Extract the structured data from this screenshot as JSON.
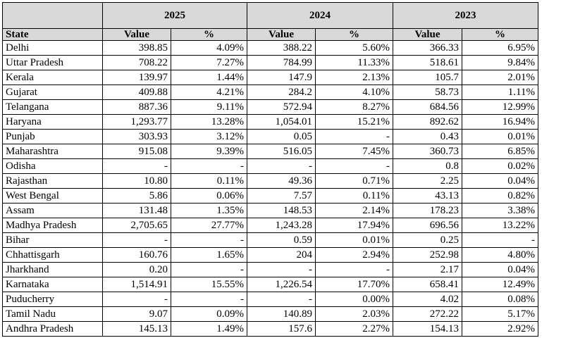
{
  "header": {
    "years": [
      "2025",
      "2024",
      "2023"
    ],
    "state_label": "State",
    "value_label": "Value",
    "pct_label": "%"
  },
  "rows": [
    {
      "state": "Delhi",
      "v2025": "398.85",
      "p2025": "4.09%",
      "v2024": "388.22",
      "p2024": "5.60%",
      "v2023": "366.33",
      "p2023": "6.95%"
    },
    {
      "state": "Uttar Pradesh",
      "v2025": "708.22",
      "p2025": "7.27%",
      "v2024": "784.99",
      "p2024": "11.33%",
      "v2023": "518.61",
      "p2023": "9.84%"
    },
    {
      "state": "Kerala",
      "v2025": "139.97",
      "p2025": "1.44%",
      "v2024": "147.9",
      "p2024": "2.13%",
      "v2023": "105.7",
      "p2023": "2.01%"
    },
    {
      "state": "Gujarat",
      "v2025": "409.88",
      "p2025": "4.21%",
      "v2024": "284.2",
      "p2024": "4.10%",
      "v2023": "58.73",
      "p2023": "1.11%"
    },
    {
      "state": "Telangana",
      "v2025": "887.36",
      "p2025": "9.11%",
      "v2024": "572.94",
      "p2024": "8.27%",
      "v2023": "684.56",
      "p2023": "12.99%"
    },
    {
      "state": "Haryana",
      "v2025": "1,293.77",
      "p2025": "13.28%",
      "v2024": "1,054.01",
      "p2024": "15.21%",
      "v2023": "892.62",
      "p2023": "16.94%"
    },
    {
      "state": "Punjab",
      "v2025": "303.93",
      "p2025": "3.12%",
      "v2024": "0.05",
      "p2024": "-",
      "v2023": "0.43",
      "p2023": "0.01%"
    },
    {
      "state": "Maharashtra",
      "v2025": "915.08",
      "p2025": "9.39%",
      "v2024": "516.05",
      "p2024": "7.45%",
      "v2023": "360.73",
      "p2023": "6.85%"
    },
    {
      "state": "Odisha",
      "v2025": "-",
      "p2025": "-",
      "v2024": "-",
      "p2024": "-",
      "v2023": "0.8",
      "p2023": "0.02%"
    },
    {
      "state": "Rajasthan",
      "v2025": "10.80",
      "p2025": "0.11%",
      "v2024": "49.36",
      "p2024": "0.71%",
      "v2023": "2.25",
      "p2023": "0.04%"
    },
    {
      "state": "West Bengal",
      "v2025": "5.86",
      "p2025": "0.06%",
      "v2024": "7.57",
      "p2024": "0.11%",
      "v2023": "43.13",
      "p2023": "0.82%"
    },
    {
      "state": "Assam",
      "v2025": "131.48",
      "p2025": "1.35%",
      "v2024": "148.53",
      "p2024": "2.14%",
      "v2023": "178.23",
      "p2023": "3.38%"
    },
    {
      "state": "Madhya Pradesh",
      "v2025": "2,705.65",
      "p2025": "27.77%",
      "v2024": "1,243.28",
      "p2024": "17.94%",
      "v2023": "696.56",
      "p2023": "13.22%"
    },
    {
      "state": "Bihar",
      "v2025": "-",
      "p2025": "-",
      "v2024": "0.59",
      "p2024": "0.01%",
      "v2023": "0.25",
      "p2023": "-"
    },
    {
      "state": "Chhattisgarh",
      "v2025": "160.76",
      "p2025": "1.65%",
      "v2024": "204",
      "p2024": "2.94%",
      "v2023": "252.98",
      "p2023": "4.80%"
    },
    {
      "state": "Jharkhand",
      "v2025": "0.20",
      "p2025": "-",
      "v2024": "-",
      "p2024": "-",
      "v2023": "2.17",
      "p2023": "0.04%"
    },
    {
      "state": "Karnataka",
      "v2025": "1,514.91",
      "p2025": "15.55%",
      "v2024": "1,226.54",
      "p2024": "17.70%",
      "v2023": "658.41",
      "p2023": "12.49%"
    },
    {
      "state": "Puducherry",
      "v2025": "-",
      "p2025": "-",
      "v2024": "-",
      "p2024": "0.00%",
      "v2023": "4.02",
      "p2023": "0.08%"
    },
    {
      "state": "Tamil Nadu",
      "v2025": "9.07",
      "p2025": "0.09%",
      "v2024": "140.89",
      "p2024": "2.03%",
      "v2023": "272.22",
      "p2023": "5.17%"
    },
    {
      "state": "Andhra Pradesh",
      "v2025": "145.13",
      "p2025": "1.49%",
      "v2024": "157.6",
      "p2024": "2.27%",
      "v2023": "154.13",
      "p2023": "2.92%"
    }
  ]
}
